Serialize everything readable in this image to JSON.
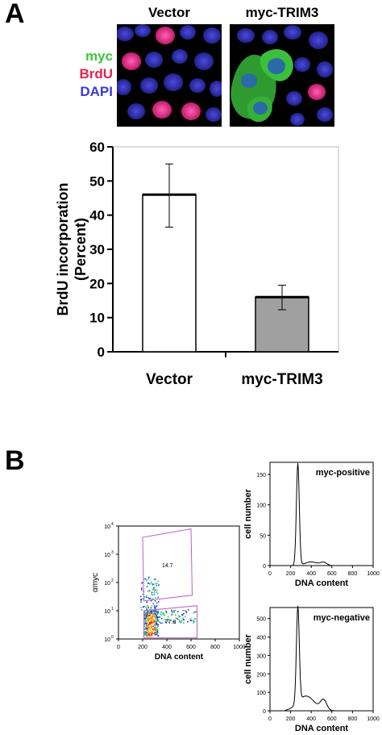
{
  "panel_a": {
    "label": "A",
    "micrograph_titles": [
      "Vector",
      "myc-TRIM3"
    ],
    "stain_legend": [
      {
        "label": "myc",
        "color": "#3cc83c"
      },
      {
        "label": "BrdU",
        "color": "#e8204a"
      },
      {
        "label": "DAPI",
        "color": "#3a3ad8"
      }
    ],
    "chart_data": {
      "type": "bar",
      "categories": [
        "Vector",
        "myc-TRIM3"
      ],
      "values": [
        46,
        16
      ],
      "error": [
        [
          36.5,
          55
        ],
        [
          12.3,
          19.5
        ]
      ],
      "ylabel": "BrdU incorporation (Percent)",
      "ylabel_lines": [
        "BrdU incorporation",
        "(Percent)"
      ],
      "ylim": [
        0,
        60
      ],
      "yticks": [
        0,
        10,
        20,
        30,
        40,
        50,
        60
      ],
      "bar_colors": [
        "#ffffff",
        "#a0a0a0"
      ],
      "grid": false
    }
  },
  "panel_b": {
    "label": "B",
    "flow": {
      "xlabel": "DNA content",
      "ylabel": "αmyc",
      "xticks": [
        "0",
        "200",
        "400",
        "600",
        "800",
        "1000"
      ],
      "yticks_exp": [
        "0",
        "1",
        "2",
        "3",
        "4"
      ],
      "ytick_base": "10",
      "gates": [
        {
          "value": "14.7"
        },
        {
          "value": "77.3"
        }
      ]
    },
    "histograms": [
      {
        "title": "myc-positive",
        "xlabel": "DNA content",
        "ylabel": "cell number",
        "xticks": [
          "0",
          "200",
          "400",
          "600",
          "800",
          "1000"
        ],
        "yticks": [
          "0",
          "50",
          "100",
          "150"
        ],
        "ylim": [
          0,
          170
        ]
      },
      {
        "title": "myc-negative",
        "xlabel": "DNA content",
        "ylabel": "cell number",
        "xticks": [
          "0",
          "200",
          "400",
          "600",
          "800",
          "1000"
        ],
        "yticks": [
          "0",
          "100",
          "200",
          "300",
          "400",
          "500"
        ],
        "ylim": [
          0,
          560
        ]
      }
    ]
  }
}
